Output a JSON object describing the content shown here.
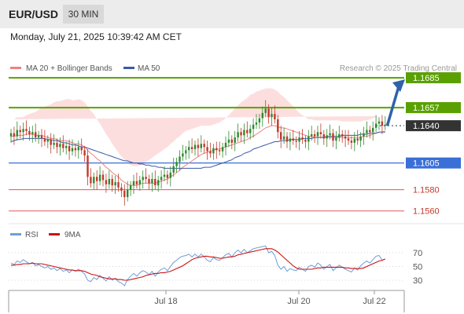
{
  "header": {
    "symbol": "EUR/USD",
    "timeframe": "30 MIN"
  },
  "timestamp": "Monday, July 21, 2025 10:39:42 AM CET",
  "legend": {
    "bb": "MA 20 + Bollinger Bands",
    "ma50": "MA 50",
    "source": "Research © 2025 Trading Central"
  },
  "rsi_legend": {
    "rsi": "RSI",
    "ma9": "9MA"
  },
  "colors": {
    "up": "#2e8b2e",
    "down": "#c0392b",
    "bb_fill": "#fddede",
    "ma20": "#f08080",
    "ma50": "#3a5aa8",
    "resistance": "#5aa000",
    "support": "#e05a5a",
    "pivot": "#3a6fd8",
    "current": "#333333",
    "arrow": "#2f62a8",
    "rsi": "#6f9ed8"
  },
  "chart_data": [
    {
      "type": "candlestick",
      "title": "EUR/USD",
      "x_tick_labels": [
        "Jul 18",
        "Jul 20",
        "Jul 22"
      ],
      "price_levels": [
        {
          "label": "1.1685",
          "kind": "resistance"
        },
        {
          "label": "1.1657",
          "kind": "resistance"
        },
        {
          "label": "1.1640",
          "kind": "current"
        },
        {
          "label": "1.1605",
          "kind": "pivot"
        },
        {
          "label": "1.1580",
          "kind": "support"
        },
        {
          "label": "1.1560",
          "kind": "support"
        }
      ],
      "ylim": [
        1.1548,
        1.1688
      ],
      "series": [
        {
          "name": "MA 20 + Bollinger Bands"
        },
        {
          "name": "MA 50"
        }
      ],
      "close": [
        1.1633,
        1.163,
        1.1636,
        1.1634,
        1.1637,
        1.1635,
        1.1632,
        1.1634,
        1.1629,
        1.1631,
        1.1628,
        1.1625,
        1.1627,
        1.1622,
        1.1624,
        1.162,
        1.1623,
        1.1619,
        1.1621,
        1.1616,
        1.1619,
        1.1617,
        1.162,
        1.1617,
        1.1612,
        1.1592,
        1.1586,
        1.1592,
        1.1588,
        1.1594,
        1.1589,
        1.1585,
        1.159,
        1.1584,
        1.1587,
        1.1582,
        1.1579,
        1.1573,
        1.158,
        1.1584,
        1.1588,
        1.1585,
        1.1589,
        1.1592,
        1.159,
        1.1586,
        1.159,
        1.1584,
        1.1589,
        1.1592,
        1.1594,
        1.1591,
        1.1596,
        1.1602,
        1.1606,
        1.1611,
        1.1614,
        1.1617,
        1.162,
        1.1618,
        1.1622,
        1.1619,
        1.1623,
        1.162,
        1.1616,
        1.1614,
        1.1619,
        1.1617,
        1.1616,
        1.162,
        1.1624,
        1.1627,
        1.1624,
        1.1629,
        1.1634,
        1.1631,
        1.1636,
        1.1633,
        1.1637,
        1.1641,
        1.1643,
        1.1647,
        1.1652,
        1.1656,
        1.1648,
        1.1651,
        1.1646,
        1.1634,
        1.1627,
        1.163,
        1.1625,
        1.1628,
        1.1626,
        1.1625,
        1.1629,
        1.1627,
        1.1625,
        1.163,
        1.1632,
        1.163,
        1.1634,
        1.1632,
        1.1628,
        1.1631,
        1.1633,
        1.1626,
        1.1629,
        1.1632,
        1.163,
        1.1628,
        1.1626,
        1.1624,
        1.1628,
        1.1626,
        1.163,
        1.1633,
        1.1636,
        1.1634,
        1.1638,
        1.1642,
        1.1644,
        1.164,
        1.1641
      ],
      "ma20": [
        1.163,
        1.163,
        1.1631,
        1.1631,
        1.1631,
        1.1632,
        1.1632,
        1.1632,
        1.1631,
        1.1631,
        1.1631,
        1.163,
        1.1629,
        1.1628,
        1.1628,
        1.1627,
        1.1626,
        1.1626,
        1.1626,
        1.1625,
        1.1624,
        1.1623,
        1.1623,
        1.1622,
        1.162,
        1.1617,
        1.1614,
        1.1612,
        1.1609,
        1.1607,
        1.1604,
        1.1601,
        1.1599,
        1.1596,
        1.1594,
        1.1592,
        1.1589,
        1.1587,
        1.1585,
        1.1584,
        1.1584,
        1.1584,
        1.1585,
        1.1586,
        1.1586,
        1.1586,
        1.1586,
        1.1586,
        1.1587,
        1.1588,
        1.1589,
        1.159,
        1.1592,
        1.1594,
        1.1596,
        1.1598,
        1.1601,
        1.1603,
        1.1605,
        1.1607,
        1.1609,
        1.1611,
        1.1613,
        1.1614,
        1.1615,
        1.1616,
        1.1617,
        1.1618,
        1.1618,
        1.1619,
        1.162,
        1.1621,
        1.1622,
        1.1623,
        1.1624,
        1.1625,
        1.1626,
        1.1627,
        1.1629,
        1.163,
        1.1632,
        1.1634,
        1.1636,
        1.1638,
        1.1639,
        1.164,
        1.164,
        1.1639,
        1.1638,
        1.1638,
        1.1637,
        1.1636,
        1.1635,
        1.1634,
        1.1633,
        1.1632,
        1.1631,
        1.163,
        1.163,
        1.1629,
        1.1629,
        1.1629,
        1.1629,
        1.1629,
        1.1629,
        1.1629,
        1.1629,
        1.1629,
        1.1629,
        1.1629,
        1.1629,
        1.1629,
        1.1629,
        1.1629,
        1.1629,
        1.163,
        1.163,
        1.1631,
        1.1632,
        1.1633,
        1.1634,
        1.1634,
        1.1635
      ],
      "bb_width": [
        0.0016,
        0.0016,
        0.0017,
        0.0017,
        0.0017,
        0.0018,
        0.0019,
        0.002,
        0.0022,
        0.0024,
        0.0026,
        0.0028,
        0.003,
        0.0032,
        0.0034,
        0.0036,
        0.0037,
        0.0038,
        0.0039,
        0.004,
        0.004,
        0.0041,
        0.0042,
        0.0042,
        0.0042,
        0.0041,
        0.004,
        0.0039,
        0.0037,
        0.0035,
        0.0033,
        0.0031,
        0.0029,
        0.0027,
        0.0025,
        0.0023,
        0.0022,
        0.0021,
        0.002,
        0.0019,
        0.0018,
        0.0018,
        0.0018,
        0.0019,
        0.002,
        0.0022,
        0.0024,
        0.0026,
        0.0027,
        0.0028,
        0.0029,
        0.003,
        0.0031,
        0.0031,
        0.0032,
        0.0032,
        0.0032,
        0.0032,
        0.0031,
        0.003,
        0.0029,
        0.0028,
        0.0027,
        0.0026,
        0.0025,
        0.0024,
        0.0024,
        0.0024,
        0.0025,
        0.0026,
        0.0027,
        0.0029,
        0.0031,
        0.0033,
        0.0035,
        0.0037,
        0.0038,
        0.0039,
        0.004,
        0.004,
        0.004,
        0.0039,
        0.0038,
        0.0037,
        0.0036,
        0.0035,
        0.0034,
        0.0033,
        0.0031,
        0.0029,
        0.0027,
        0.0025,
        0.0023,
        0.0021,
        0.0019,
        0.0018,
        0.0017,
        0.0016,
        0.0016,
        0.0016,
        0.0016,
        0.0016,
        0.0016,
        0.0016,
        0.0016,
        0.0016,
        0.0016,
        0.0016,
        0.0015,
        0.0015,
        0.0015,
        0.0015,
        0.0015,
        0.0015,
        0.0015,
        0.0015,
        0.0015,
        0.0015,
        0.0015,
        0.0015,
        0.0015,
        0.0015
      ],
      "ma50": [
        1.1625,
        1.1626,
        1.1627,
        1.1627,
        1.1628,
        1.1628,
        1.1628,
        1.1628,
        1.1628,
        1.1628,
        1.1628,
        1.1628,
        1.1627,
        1.1627,
        1.1626,
        1.1626,
        1.1625,
        1.1624,
        1.1624,
        1.1623,
        1.1622,
        1.1622,
        1.1621,
        1.162,
        1.162,
        1.1619,
        1.1618,
        1.1617,
        1.1616,
        1.1615,
        1.1614,
        1.1613,
        1.1612,
        1.1611,
        1.161,
        1.1609,
        1.1608,
        1.1607,
        1.1607,
        1.1606,
        1.1605,
        1.1605,
        1.1604,
        1.1604,
        1.1603,
        1.1603,
        1.1602,
        1.1602,
        1.1601,
        1.1601,
        1.16,
        1.16,
        1.16,
        1.16,
        1.16,
        1.16,
        1.16,
        1.16,
        1.16,
        1.16,
        1.16,
        1.16,
        1.16,
        1.1601,
        1.1601,
        1.1601,
        1.1602,
        1.1603,
        1.1604,
        1.1605,
        1.1606,
        1.1607,
        1.1608,
        1.161,
        1.1611,
        1.1612,
        1.1614,
        1.1615,
        1.1616,
        1.1618,
        1.1619,
        1.162,
        1.1621,
        1.1622,
        1.1623,
        1.1624,
        1.1625,
        1.1625,
        1.1626,
        1.1626,
        1.1626,
        1.1627,
        1.1627,
        1.1627,
        1.1627,
        1.1628,
        1.1628,
        1.1628,
        1.1628,
        1.1629,
        1.1629,
        1.1629,
        1.1629,
        1.163,
        1.163,
        1.163,
        1.163,
        1.163,
        1.1631,
        1.1631,
        1.1631,
        1.1631,
        1.1631,
        1.1631,
        1.1632,
        1.1632,
        1.1632,
        1.1633,
        1.1633,
        1.1633,
        1.1634,
        1.1634,
        1.1634
      ]
    },
    {
      "type": "line",
      "title": "RSI",
      "y_tick_labels": [
        "70",
        "50",
        "30"
      ],
      "ylim": [
        20,
        80
      ],
      "series": [
        {
          "name": "RSI",
          "values": [
            55,
            53,
            58,
            56,
            60,
            57,
            54,
            56,
            51,
            53,
            50,
            48,
            50,
            46,
            48,
            44,
            47,
            43,
            45,
            41,
            45,
            43,
            46,
            43,
            39,
            30,
            28,
            34,
            31,
            37,
            33,
            29,
            35,
            30,
            33,
            28,
            26,
            22,
            31,
            36,
            40,
            36,
            41,
            44,
            42,
            38,
            43,
            36,
            42,
            46,
            48,
            44,
            50,
            56,
            59,
            63,
            65,
            66,
            68,
            64,
            68,
            64,
            68,
            64,
            59,
            57,
            63,
            60,
            59,
            63,
            67,
            69,
            64,
            70,
            74,
            70,
            75,
            70,
            73,
            76,
            77,
            78,
            79,
            80,
            70,
            72,
            66,
            52,
            46,
            50,
            43,
            47,
            45,
            44,
            49,
            46,
            43,
            50,
            52,
            49,
            55,
            52,
            46,
            50,
            53,
            44,
            48,
            52,
            49,
            46,
            44,
            42,
            48,
            45,
            51,
            55,
            58,
            55,
            60,
            65,
            66,
            59,
            61
          ]
        },
        {
          "name": "9MA",
          "values": [
            52,
            52,
            53,
            53,
            54,
            54,
            54,
            55,
            54,
            54,
            54,
            53,
            52,
            51,
            50,
            49,
            48,
            47,
            46,
            45,
            45,
            44,
            44,
            44,
            43,
            41,
            39,
            38,
            37,
            35,
            34,
            33,
            32,
            32,
            32,
            31,
            31,
            30,
            30,
            31,
            32,
            33,
            34,
            35,
            37,
            38,
            39,
            40,
            40,
            41,
            41,
            42,
            43,
            45,
            47,
            49,
            51,
            54,
            57,
            60,
            62,
            63,
            64,
            65,
            65,
            64,
            64,
            63,
            62,
            62,
            63,
            64,
            64,
            65,
            67,
            68,
            69,
            70,
            71,
            72,
            73,
            74,
            75,
            76,
            76,
            76,
            74,
            71,
            67,
            63,
            59,
            55,
            51,
            48,
            46,
            46,
            46,
            46,
            46,
            47,
            48,
            48,
            49,
            49,
            49,
            49,
            49,
            49,
            49,
            48,
            48,
            47,
            47,
            47,
            47,
            48,
            50,
            52,
            54,
            56,
            58,
            59,
            61
          ]
        }
      ]
    }
  ]
}
